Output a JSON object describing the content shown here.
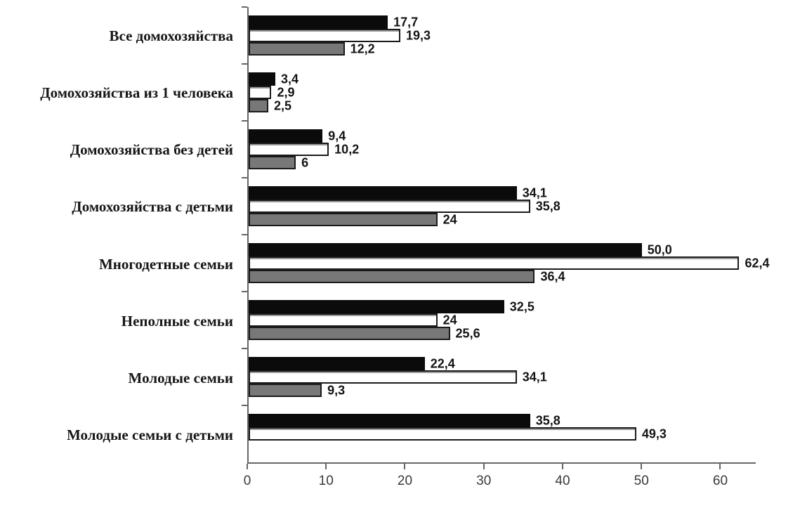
{
  "chart_data": {
    "type": "bar",
    "orientation": "horizontal",
    "title": "",
    "xlabel": "",
    "ylabel": "",
    "legend": "none",
    "grid": false,
    "categories": [
      "Все домохозяйства",
      "Домохозяйства из  1 человека",
      "Домохозяйства без детей",
      "Домохозяйства с детьми",
      "Многодетные семьи",
      "Неполные семьи",
      "Молодые семьи",
      "Молодые семьи с детьми"
    ],
    "series": [
      {
        "name": "black-series",
        "color": "#0b0b0b",
        "values": [
          17.7,
          3.4,
          9.4,
          34.1,
          50.0,
          32.5,
          22.4,
          35.8
        ],
        "labels": [
          "17,7",
          "3,4",
          "9,4",
          "34,1",
          "50,0",
          "32,5",
          "22,4",
          "35,8"
        ]
      },
      {
        "name": "white-series",
        "color": "#ffffff",
        "values": [
          19.3,
          2.9,
          10.2,
          35.8,
          62.4,
          24,
          34.1,
          49.3
        ],
        "labels": [
          "19,3",
          "2,9",
          "10,2",
          "35,8",
          "62,4",
          "24",
          "34,1",
          "49,3"
        ]
      },
      {
        "name": "gray-series",
        "color": "#787878",
        "values": [
          12.2,
          2.5,
          6,
          24,
          36.4,
          25.6,
          9.3,
          null
        ],
        "labels": [
          "12,2",
          "2,5",
          "6",
          "24",
          "36,4",
          "25,6",
          "9,3",
          null
        ]
      }
    ],
    "x_ticks": [
      0,
      10,
      20,
      30,
      40,
      50,
      60
    ],
    "xlim": [
      0,
      64.5
    ]
  },
  "colors": {
    "bar_border": "#141414",
    "axis": "#666666",
    "value_text": "#141414",
    "tick_text": "#3a3a3a",
    "category_text": "#161616"
  }
}
